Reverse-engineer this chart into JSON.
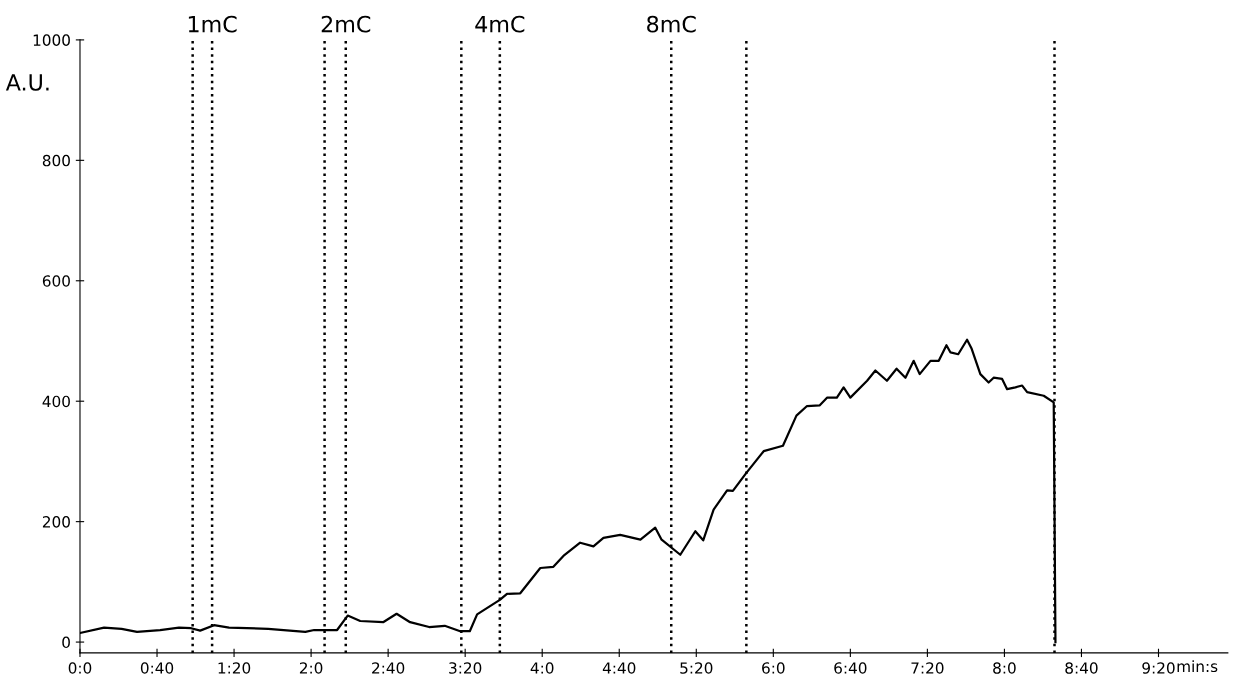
{
  "chart_data": {
    "type": "line",
    "xlabel": "min:s",
    "ylabel": "A.U.",
    "x": [
      0,
      12.5,
      21.6,
      29.6,
      41.6,
      51.4,
      57.7,
      62.4,
      69.6,
      77.4,
      97.7,
      117,
      121.6,
      133.5,
      139,
      145.5,
      157.4,
      164.4,
      171.4,
      181.3,
      189.4,
      197.4,
      202.4,
      206.2,
      218,
      221.7,
      228.6,
      239,
      245.8,
      251,
      259.7,
      266.6,
      271.8,
      280.5,
      291,
      298.7,
      302,
      311.7,
      319.5,
      323.6,
      329,
      336,
      339,
      346,
      355,
      365,
      372,
      377.5,
      384,
      388,
      393,
      396.5,
      400,
      408.7,
      413,
      419,
      424,
      428.6,
      432.9,
      436,
      441.6,
      445.9,
      449.9,
      452,
      456,
      460.6,
      463,
      467.5,
      471.8,
      474.4,
      478.8,
      481.4,
      485.7,
      489.2,
      491.8,
      500.4,
      505.6,
      506.5
    ],
    "series": [
      {
        "color": "#000000",
        "values": [
          15,
          24,
          22,
          17,
          20,
          24,
          23,
          19,
          28,
          24,
          22,
          17,
          20,
          20,
          44,
          35,
          33,
          47,
          33,
          25,
          27,
          18,
          18,
          46,
          70,
          80,
          81,
          123,
          125,
          143,
          165,
          159,
          173,
          178,
          170,
          190,
          170,
          145,
          184,
          169,
          220,
          252,
          251,
          281,
          317,
          326,
          376,
          392,
          393,
          406,
          406,
          423,
          406,
          434,
          451,
          434,
          454,
          439,
          467,
          445,
          467,
          467,
          493,
          481,
          478,
          502,
          487,
          445,
          431,
          439,
          437,
          420,
          423,
          426,
          415,
          409,
          398,
          0
        ]
      }
    ],
    "xlim": [
      0,
      596
    ],
    "ylim": [
      -18,
      1000
    ],
    "xticks": [
      {
        "value": 0,
        "label": "0:0"
      },
      {
        "value": 40,
        "label": "0:40"
      },
      {
        "value": 80,
        "label": "1:20"
      },
      {
        "value": 120,
        "label": "2:0"
      },
      {
        "value": 160,
        "label": "2:40"
      },
      {
        "value": 200,
        "label": "3:20"
      },
      {
        "value": 240,
        "label": "4:0"
      },
      {
        "value": 280,
        "label": "4:40"
      },
      {
        "value": 320,
        "label": "5:20"
      },
      {
        "value": 360,
        "label": "6:0"
      },
      {
        "value": 400,
        "label": "6:40"
      },
      {
        "value": 440,
        "label": "7:20"
      },
      {
        "value": 480,
        "label": "8:0"
      },
      {
        "value": 520,
        "label": "8:40"
      },
      {
        "value": 560,
        "label": "9:20"
      }
    ],
    "yticks": [
      0,
      200,
      400,
      600,
      800,
      1000
    ],
    "ref_lines": [
      {
        "axis": "x",
        "value": 58.5,
        "line_style": "dotted"
      },
      {
        "axis": "x",
        "value": 68.6,
        "line_style": "dotted",
        "label": "1mC"
      },
      {
        "axis": "x",
        "value": 127,
        "line_style": "dotted"
      },
      {
        "axis": "x",
        "value": 138,
        "line_style": "dotted",
        "label": "2mC"
      },
      {
        "axis": "x",
        "value": 198,
        "line_style": "dotted"
      },
      {
        "axis": "x",
        "value": 218,
        "line_style": "dotted",
        "label": "4mC"
      },
      {
        "axis": "x",
        "value": 307,
        "line_style": "dotted",
        "label": "8mC"
      },
      {
        "axis": "x",
        "value": 346,
        "line_style": "dotted"
      },
      {
        "axis": "x",
        "value": 506,
        "line_style": "dotted"
      }
    ],
    "line_style": "solid",
    "marker": "none",
    "grid": false,
    "legend": false
  }
}
